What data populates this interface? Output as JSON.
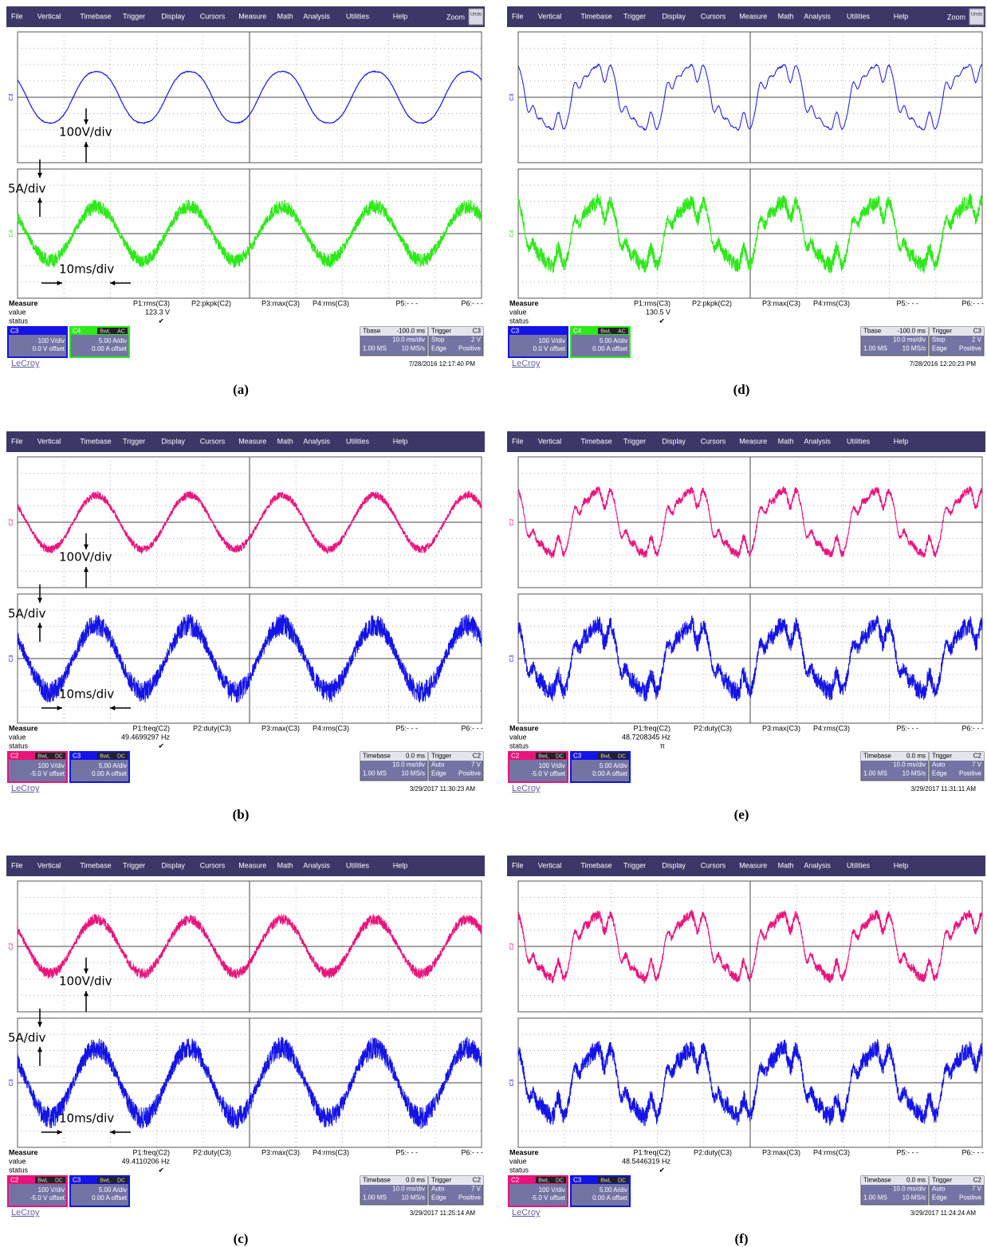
{
  "menu": [
    "File",
    "Vertical",
    "Timebase",
    "Trigger",
    "Display",
    "Cursors",
    "Measure",
    "Math",
    "Analysis",
    "Utilities",
    "Help"
  ],
  "measure_labels": {
    "title": "Measure",
    "value": "value",
    "status": "status"
  },
  "panels": [
    {
      "zoom": "Zoom",
      "undo": "Undo",
      "channels": [
        "C3",
        "C4"
      ],
      "annotations": {
        "voltage": "100V/div",
        "current": "5A/div",
        "time": "10ms/div"
      },
      "params": [
        "P1:rms(C3)",
        "P2:pkpk(C2)",
        "P3:max(C3)",
        "P4:rms(C3)",
        "P5:- - -",
        "P6:- - -"
      ],
      "value": "123.3 V",
      "status": "✔",
      "boxes": [
        {
          "name": "C3",
          "rows": [
            "100 V/div",
            "0.0 V offset"
          ]
        },
        {
          "name": "C4",
          "bw": "BwL",
          "coupling": "AC",
          "rows": [
            "5.00 A/div",
            "0.00 A offset"
          ]
        }
      ],
      "timebase": [
        [
          "Tbase",
          "-100.0 ms"
        ],
        [
          "",
          "10.0 ms/div"
        ],
        [
          "1.00 MS",
          "10 MS/s"
        ]
      ],
      "trigger": [
        [
          "Trigger",
          "C3"
        ],
        [
          "Stop",
          "2 V"
        ],
        [
          "Edge",
          "Positive"
        ]
      ],
      "brand": "LeCroy",
      "date": "7/28/2016 12:17:40 PM",
      "caption": "(a)"
    },
    {
      "zoom": "Zoom",
      "undo": "Undo",
      "channels": [
        "C3",
        "C4"
      ],
      "params": [
        "P1:rms(C3)",
        "P2:pkpk(C2)",
        "P3:max(C3)",
        "P4:rms(C3)",
        "P5:- - -",
        "P6:- - -"
      ],
      "value": "130.5 V",
      "status": "✔",
      "boxes": [
        {
          "name": "C3",
          "rows": [
            "100 V/div",
            "0.0 V offset"
          ]
        },
        {
          "name": "C4",
          "bw": "BwL",
          "coupling": "AC",
          "rows": [
            "5.00 A/div",
            "0.00 A offset"
          ]
        }
      ],
      "timebase": [
        [
          "Tbase",
          "-100.0 ms"
        ],
        [
          "",
          "10.0 ms/div"
        ],
        [
          "1.00 MS",
          "10 MS/s"
        ]
      ],
      "trigger": [
        [
          "Trigger",
          "C3"
        ],
        [
          "Stop",
          "2 V"
        ],
        [
          "Edge",
          "Positive"
        ]
      ],
      "brand": "LeCroy",
      "date": "7/28/2016 12:20:23 PM",
      "caption": "(d)"
    },
    {
      "channels": [
        "C2",
        "C3"
      ],
      "annotations": {
        "voltage": "100V/div",
        "current": "5A/div",
        "time": "10ms/div"
      },
      "params": [
        "P1:freq(C2)",
        "P2:duty(C3)",
        "P3:max(C3)",
        "P4:rms(C3)",
        "P5:- - -",
        "P6:- - -"
      ],
      "value": "49.4699297 Hz",
      "status": "✔",
      "boxes": [
        {
          "name": "C2",
          "bw": "BwL",
          "coupling": "DC",
          "rows": [
            "100 V/div",
            "-5.0 V offset"
          ]
        },
        {
          "name": "C3",
          "bw": "BwL",
          "coupling": "DC",
          "rows": [
            "5.00 A/div",
            "0.00 A offset"
          ]
        }
      ],
      "timebase": [
        [
          "Timebase",
          "0.0 ms"
        ],
        [
          "",
          "10.0 ms/div"
        ],
        [
          "1.00 MS",
          "10 MS/s"
        ]
      ],
      "trigger": [
        [
          "Trigger",
          "C2"
        ],
        [
          "Auto",
          "7 V"
        ],
        [
          "Edge",
          "Positive"
        ]
      ],
      "brand": "LeCroy",
      "date": "3/29/2017 11:30:23 AM",
      "caption": "(b)"
    },
    {
      "channels": [
        "C2",
        "C3"
      ],
      "params": [
        "P1:freq(C2)",
        "P2:duty(C3)",
        "P3:max(C3)",
        "P4:rms(C3)",
        "P5:- - -",
        "P6:- - -"
      ],
      "value": "48.7208345 Hz",
      "status": "π",
      "boxes": [
        {
          "name": "C2",
          "bw": "BwL",
          "coupling": "DC",
          "rows": [
            "100 V/div",
            "-5.0 V offset"
          ]
        },
        {
          "name": "C3",
          "bw": "BwL",
          "coupling": "DC",
          "rows": [
            "5.00 A/div",
            "0.00 A offset"
          ]
        }
      ],
      "timebase": [
        [
          "Timebase",
          "0.0 ms"
        ],
        [
          "",
          "10.0 ms/div"
        ],
        [
          "1.00 MS",
          "10 MS/s"
        ]
      ],
      "trigger": [
        [
          "Trigger",
          "C2"
        ],
        [
          "Auto",
          "7 V"
        ],
        [
          "Edge",
          "Positive"
        ]
      ],
      "brand": "LeCroy",
      "date": "3/29/2017 11:31:11 AM",
      "caption": "(e)"
    },
    {
      "channels": [
        "C2",
        "C3"
      ],
      "annotations": {
        "voltage": "100V/div",
        "current": "5A/div",
        "time": "10ms/div"
      },
      "params": [
        "P1:freq(C2)",
        "P2:duty(C3)",
        "P3:max(C3)",
        "P4:rms(C3)",
        "P5:- - -",
        "P6:- - -"
      ],
      "value": "49.4110206 Hz",
      "status": "✔",
      "boxes": [
        {
          "name": "C2",
          "bw": "BwL",
          "coupling": "DC",
          "rows": [
            "100 V/div",
            "-5.0 V offset"
          ]
        },
        {
          "name": "C3",
          "bw": "BwL",
          "coupling": "DC",
          "rows": [
            "5.00 A/div",
            "0.00 A offset"
          ]
        }
      ],
      "timebase": [
        [
          "Timebase",
          "0.0 ms"
        ],
        [
          "",
          "10.0 ms/div"
        ],
        [
          "1.00 MS",
          "10 MS/s"
        ]
      ],
      "trigger": [
        [
          "Trigger",
          "C2"
        ],
        [
          "Auto",
          "7 V"
        ],
        [
          "Edge",
          "Positive"
        ]
      ],
      "brand": "LeCroy",
      "date": "3/29/2017 11:25:14 AM",
      "caption": "(c)"
    },
    {
      "channels": [
        "C2",
        "C3"
      ],
      "params": [
        "P1:freq(C2)",
        "P2:duty(C3)",
        "P3:max(C3)",
        "P4:rms(C3)",
        "P5:- - -",
        "P6:- - -"
      ],
      "value": "48.5446319 Hz",
      "status": "✔",
      "boxes": [
        {
          "name": "C2",
          "bw": "BwL",
          "coupling": "DC",
          "rows": [
            "100 V/div",
            "-5.0 V offset"
          ]
        },
        {
          "name": "C3",
          "bw": "BwL",
          "coupling": "DC",
          "rows": [
            "5.00 A/div",
            "0.00 A offset"
          ]
        }
      ],
      "timebase": [
        [
          "Timebase",
          "0.0 ms"
        ],
        [
          "",
          "10.0 ms/div"
        ],
        [
          "1.00 MS",
          "10 MS/s"
        ]
      ],
      "trigger": [
        [
          "Trigger",
          "C2"
        ],
        [
          "Auto",
          "7 V"
        ],
        [
          "Edge",
          "Positive"
        ]
      ],
      "brand": "LeCroy",
      "date": "3/29/2017 11:24:24 AM",
      "caption": "(f)"
    }
  ]
}
